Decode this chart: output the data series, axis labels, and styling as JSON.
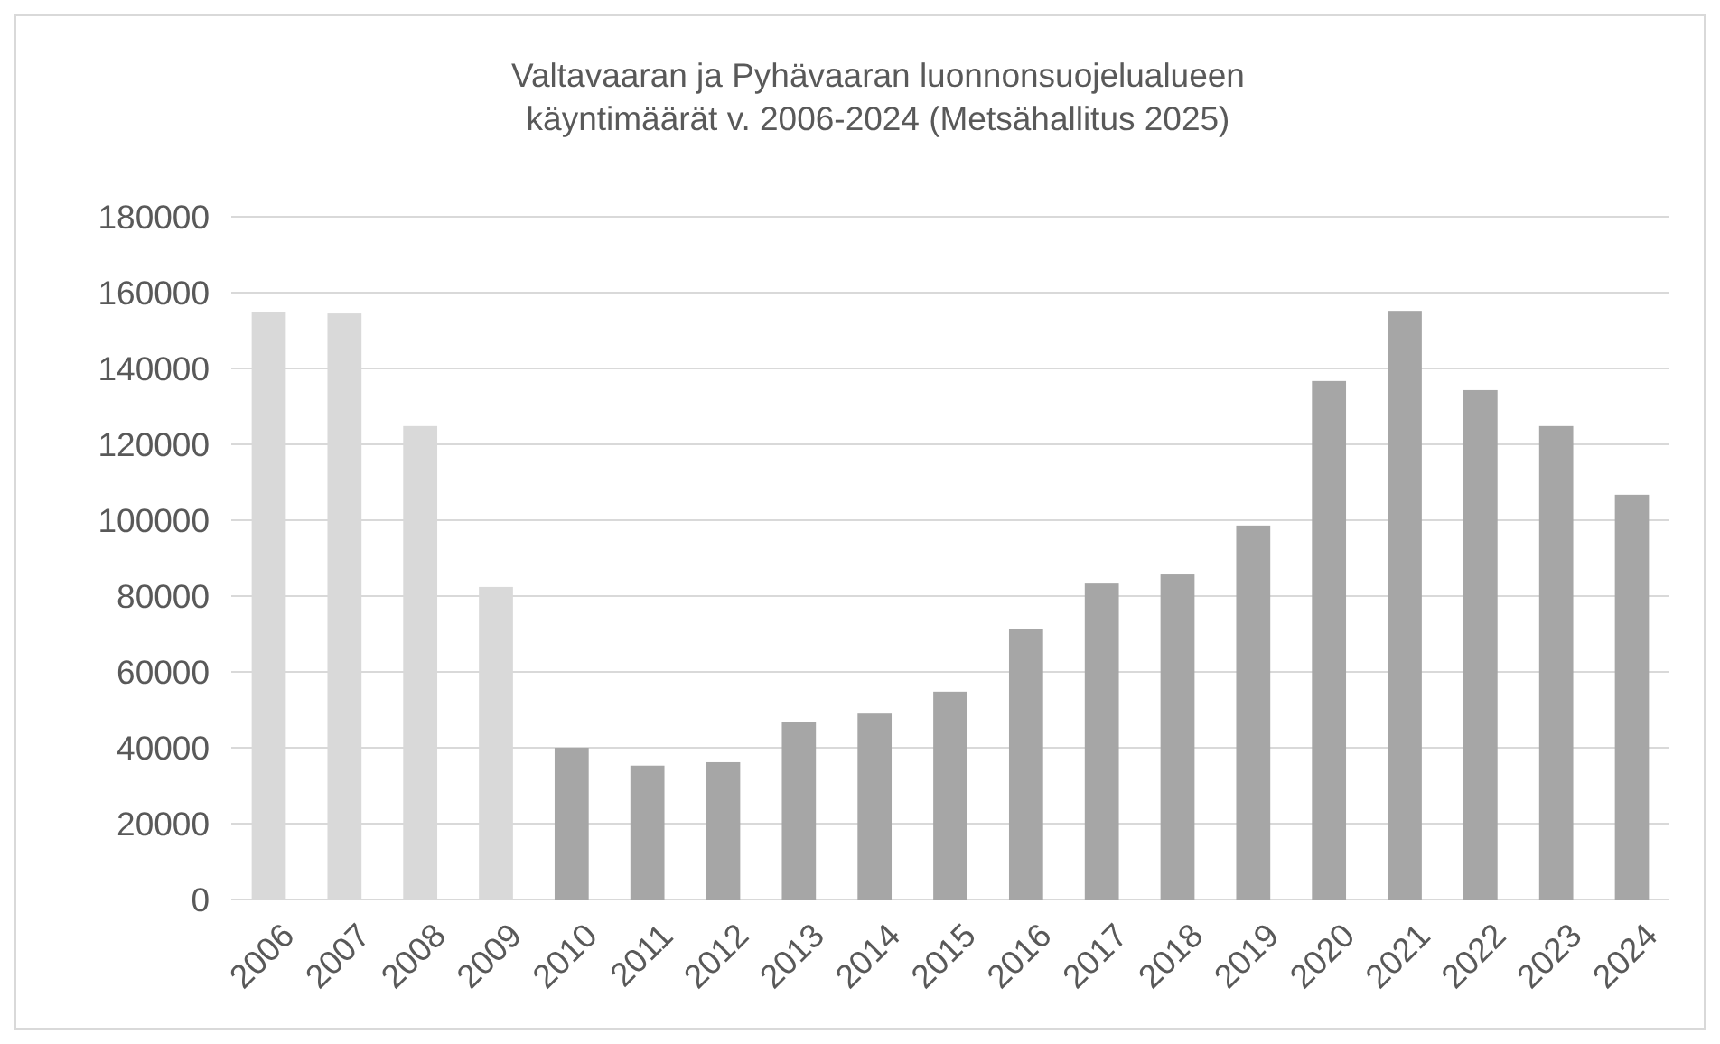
{
  "chart_data": {
    "type": "bar",
    "title": "Valtavaaran ja Pyhävaaran luonnonsuojelualueen\nkäyntimäärät v. 2006-2024 (Metsähallitus 2025)",
    "categories": [
      "2006",
      "2007",
      "2008",
      "2009",
      "2010",
      "2011",
      "2012",
      "2013",
      "2014",
      "2015",
      "2016",
      "2017",
      "2018",
      "2019",
      "2020",
      "2021",
      "2022",
      "2023",
      "2024"
    ],
    "values": [
      155000,
      154500,
      124800,
      82400,
      40000,
      35300,
      36200,
      46700,
      49000,
      54800,
      71400,
      83300,
      85700,
      98600,
      136700,
      155200,
      134300,
      124800,
      106700
    ],
    "colors": [
      "#d9d9d9",
      "#d9d9d9",
      "#d9d9d9",
      "#d9d9d9",
      "#a6a6a6",
      "#a6a6a6",
      "#a6a6a6",
      "#a6a6a6",
      "#a6a6a6",
      "#a6a6a6",
      "#a6a6a6",
      "#a6a6a6",
      "#a6a6a6",
      "#a6a6a6",
      "#a6a6a6",
      "#a6a6a6",
      "#a6a6a6",
      "#a6a6a6",
      "#a6a6a6"
    ],
    "ylim": [
      0,
      180000
    ],
    "yticks": [
      0,
      20000,
      40000,
      60000,
      80000,
      100000,
      120000,
      140000,
      160000,
      180000
    ],
    "grid": "y"
  }
}
